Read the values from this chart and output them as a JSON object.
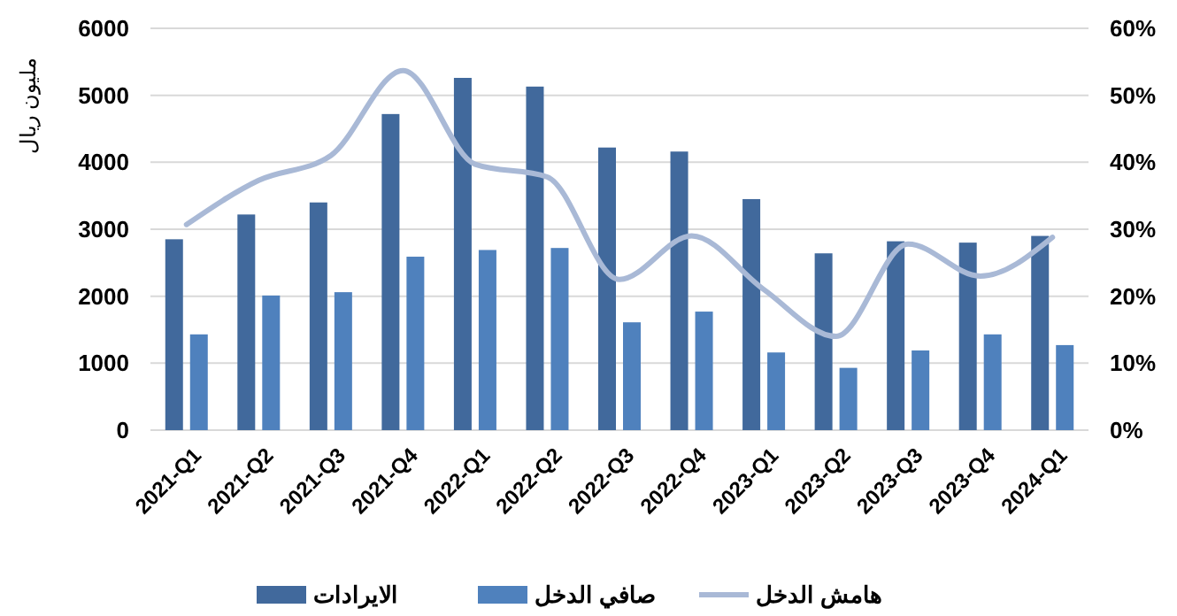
{
  "chart_data": {
    "type": "bar",
    "ylabel": "مليون ريال",
    "categories": [
      "2021-Q1",
      "2021-Q2",
      "2021-Q3",
      "2021-Q4",
      "2022-Q1",
      "2022-Q2",
      "2022-Q3",
      "2022-Q4",
      "2023-Q1",
      "2023-Q2",
      "2023-Q3",
      "2023-Q4",
      "2024-Q1"
    ],
    "series": [
      {
        "name": "الايرادات",
        "color": "#41699c",
        "values": [
          2850,
          3220,
          3400,
          4720,
          5260,
          5130,
          4220,
          4160,
          3450,
          2640,
          2820,
          2800,
          2900
        ]
      },
      {
        "name": "صافي الدخل",
        "color": "#4f81bd",
        "values": [
          1430,
          2010,
          2060,
          2590,
          2690,
          2720,
          1610,
          1770,
          1160,
          930,
          1190,
          1430,
          1270
        ]
      },
      {
        "name": "هامش الدخل",
        "type": "line",
        "axis": "y2",
        "color": "#a9b9d6",
        "values": [
          30.7,
          37.3,
          41,
          53.7,
          39.7,
          37.8,
          22.5,
          29,
          21,
          14,
          27.8,
          23,
          28.8
        ]
      }
    ],
    "ylim": [
      0,
      6000
    ],
    "yticks": [
      0,
      1000,
      2000,
      3000,
      4000,
      5000,
      6000
    ],
    "y2lim": [
      0,
      60
    ],
    "y2ticks": [
      {
        "value": 0,
        "label": "0%"
      },
      {
        "value": 10,
        "label": "10%"
      },
      {
        "value": 20,
        "label": "20%"
      },
      {
        "value": 30,
        "label": "30%"
      },
      {
        "value": 40,
        "label": "40%"
      },
      {
        "value": 50,
        "label": "50%"
      },
      {
        "value": 60,
        "label": "60%"
      }
    ],
    "grid": "y",
    "legend": "bottom",
    "marker": "none",
    "line_style": "solid"
  }
}
